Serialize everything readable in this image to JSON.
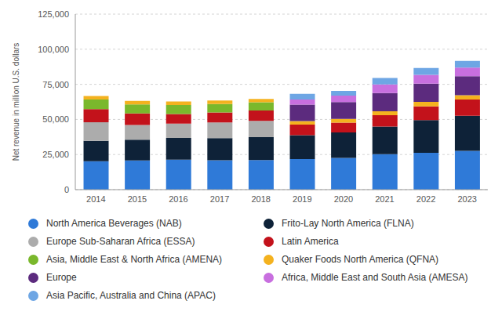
{
  "chart_data": {
    "type": "bar",
    "stacked": true,
    "grid": true,
    "legend": "bottom",
    "y_label": "Net revenue in million U.S. dollars",
    "categories": [
      "2014",
      "2015",
      "2016",
      "2017",
      "2018",
      "2019",
      "2020",
      "2021",
      "2022",
      "2023"
    ],
    "ylim": [
      0,
      125000
    ],
    "yticks": [
      {
        "value": 0,
        "label": "0"
      },
      {
        "value": 25000,
        "label": "25,000"
      },
      {
        "value": 50000,
        "label": "50,000"
      },
      {
        "value": 75000,
        "label": "75,000"
      },
      {
        "value": 100000,
        "label": "100,000"
      },
      {
        "value": 125000,
        "label": "125,000"
      }
    ],
    "series": [
      {
        "name": "North America Beverages (NAB)",
        "color": "#2f7ad8",
        "values": [
          20171,
          20789,
          21312,
          20936,
          21072,
          21730,
          22559,
          25276,
          26213,
          27626
        ]
      },
      {
        "name": "Frito-Lay North America (FLNA)",
        "color": "#0e2238",
        "values": [
          14502,
          14782,
          15549,
          15798,
          16346,
          17078,
          18189,
          19608,
          23291,
          24914
        ]
      },
      {
        "name": "Europe Sub-Saharan Africa (ESSA)",
        "color": "#acacac",
        "values": [
          13290,
          10510,
          10216,
          11050,
          11523,
          null,
          null,
          null,
          null,
          null
        ]
      },
      {
        "name": "Latin America",
        "color": "#c3121b",
        "values": [
          9425,
          8228,
          6820,
          7208,
          7354,
          7573,
          6942,
          8108,
          9779,
          11654
        ]
      },
      {
        "name": "Asia, Middle East & North Africa (AMENA)",
        "color": "#7ab82c",
        "values": [
          6727,
          6375,
          6338,
          6030,
          5901,
          null,
          null,
          null,
          null,
          null
        ]
      },
      {
        "name": "Quaker Foods North America (QFNA)",
        "color": "#f4b21f",
        "values": [
          2568,
          2543,
          2564,
          2503,
          2465,
          2482,
          2742,
          2751,
          3160,
          3101
        ]
      },
      {
        "name": "Europe",
        "color": "#5c2b7e",
        "values": [
          null,
          null,
          null,
          null,
          null,
          11728,
          11922,
          13038,
          13046,
          13484
        ]
      },
      {
        "name": "Africa, Middle East and South Asia (AMESA)",
        "color": "#c86fdf",
        "values": [
          null,
          null,
          null,
          null,
          null,
          3651,
          4573,
          6078,
          6301,
          6139
        ]
      },
      {
        "name": "Asia Pacific, Australia and China (APAC)",
        "color": "#6ea6e4",
        "values": [
          null,
          null,
          null,
          null,
          null,
          3919,
          3445,
          4615,
          4787,
          4803
        ]
      }
    ]
  }
}
